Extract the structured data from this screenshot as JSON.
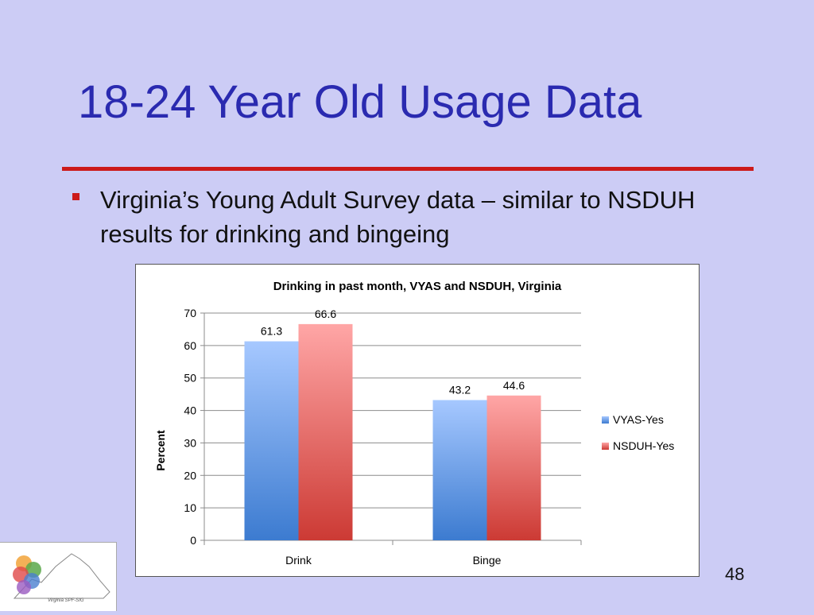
{
  "slide": {
    "title": "18-24 Year Old Usage Data",
    "bullet": "Virginia’s Young Adult Survey data – similar to NSDUH results for drinking and bingeing",
    "page_number": "48",
    "logo_caption": "Virginia SPF-SIG"
  },
  "colors": {
    "background": "#ccccf5",
    "title": "#2a2ab0",
    "rule": "#cc1a1a",
    "series_vyas": "#5b8fd8",
    "series_nsduh": "#e06060"
  },
  "chart_data": {
    "type": "bar",
    "title": "Drinking in past month, VYAS and NSDUH, Virginia",
    "xlabel": "",
    "ylabel": "Percent",
    "ylim": [
      0,
      70
    ],
    "yticks": [
      0,
      10,
      20,
      30,
      40,
      50,
      60,
      70
    ],
    "categories": [
      "Drink",
      "Binge"
    ],
    "series": [
      {
        "name": "VYAS-Yes",
        "values": [
          61.3,
          43.2
        ]
      },
      {
        "name": "NSDUH-Yes",
        "values": [
          66.6,
          44.6
        ]
      }
    ],
    "data_labels": [
      [
        "61.3",
        "43.2"
      ],
      [
        "66.6",
        "44.6"
      ]
    ],
    "grid": true,
    "legend": "right"
  }
}
